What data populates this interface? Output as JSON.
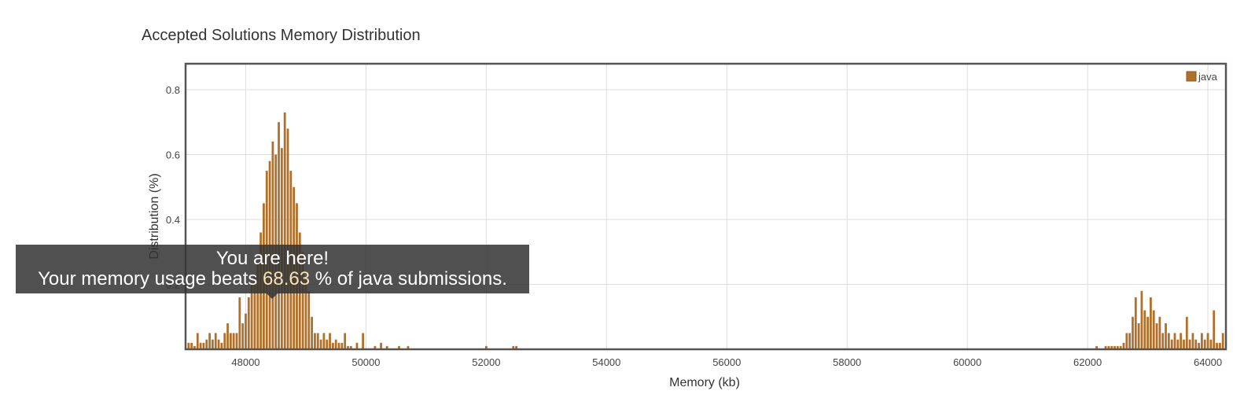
{
  "chart_data": {
    "type": "bar",
    "title": "Accepted Solutions Memory Distribution",
    "xlabel": "Memory (kb)",
    "ylabel": "Distribution (%)",
    "xlim": [
      47000,
      64300
    ],
    "ylim": [
      0,
      0.88
    ],
    "x_ticks": [
      48000,
      50000,
      52000,
      54000,
      56000,
      58000,
      60000,
      62000,
      64000
    ],
    "y_ticks": [
      0.2,
      0.4,
      0.6,
      0.8
    ],
    "grid": true,
    "legend_position": "top-right",
    "bar_width": 28,
    "series": [
      {
        "name": "java",
        "color": "#b0702a",
        "points": [
          [
            47050,
            0.02
          ],
          [
            47100,
            0.02
          ],
          [
            47150,
            0.01
          ],
          [
            47200,
            0.05
          ],
          [
            47250,
            0.02
          ],
          [
            47300,
            0.02
          ],
          [
            47350,
            0.03
          ],
          [
            47400,
            0.05
          ],
          [
            47450,
            0.03
          ],
          [
            47500,
            0.05
          ],
          [
            47550,
            0.03
          ],
          [
            47600,
            0.02
          ],
          [
            47650,
            0.05
          ],
          [
            47700,
            0.08
          ],
          [
            47750,
            0.05
          ],
          [
            47800,
            0.05
          ],
          [
            47850,
            0.05
          ],
          [
            47900,
            0.16
          ],
          [
            47950,
            0.08
          ],
          [
            48000,
            0.11
          ],
          [
            48050,
            0.16
          ],
          [
            48100,
            0.2
          ],
          [
            48150,
            0.23
          ],
          [
            48200,
            0.27
          ],
          [
            48250,
            0.36
          ],
          [
            48300,
            0.45
          ],
          [
            48350,
            0.55
          ],
          [
            48400,
            0.58
          ],
          [
            48450,
            0.64
          ],
          [
            48500,
            0.6
          ],
          [
            48550,
            0.7
          ],
          [
            48600,
            0.62
          ],
          [
            48650,
            0.73
          ],
          [
            48700,
            0.68
          ],
          [
            48750,
            0.55
          ],
          [
            48800,
            0.5
          ],
          [
            48850,
            0.45
          ],
          [
            48900,
            0.36
          ],
          [
            48950,
            0.3
          ],
          [
            49000,
            0.22
          ],
          [
            49050,
            0.18
          ],
          [
            49100,
            0.1
          ],
          [
            49150,
            0.05
          ],
          [
            49200,
            0.05
          ],
          [
            49250,
            0.03
          ],
          [
            49300,
            0.05
          ],
          [
            49350,
            0.03
          ],
          [
            49400,
            0.05
          ],
          [
            49450,
            0.02
          ],
          [
            49500,
            0.03
          ],
          [
            49550,
            0.02
          ],
          [
            49600,
            0.02
          ],
          [
            49650,
            0.05
          ],
          [
            49700,
            0.01
          ],
          [
            49750,
            0.01
          ],
          [
            49850,
            0.02
          ],
          [
            49950,
            0.05
          ],
          [
            50150,
            0.01
          ],
          [
            50250,
            0.02
          ],
          [
            50350,
            0.01
          ],
          [
            50550,
            0.01
          ],
          [
            50700,
            0.01
          ],
          [
            52000,
            0.01
          ],
          [
            52450,
            0.01
          ],
          [
            52500,
            0.01
          ],
          [
            62150,
            0.01
          ],
          [
            62300,
            0.01
          ],
          [
            62350,
            0.01
          ],
          [
            62400,
            0.01
          ],
          [
            62450,
            0.01
          ],
          [
            62500,
            0.01
          ],
          [
            62550,
            0.01
          ],
          [
            62600,
            0.02
          ],
          [
            62650,
            0.05
          ],
          [
            62700,
            0.05
          ],
          [
            62750,
            0.1
          ],
          [
            62800,
            0.16
          ],
          [
            62850,
            0.08
          ],
          [
            62900,
            0.18
          ],
          [
            62950,
            0.12
          ],
          [
            63000,
            0.1
          ],
          [
            63050,
            0.16
          ],
          [
            63100,
            0.12
          ],
          [
            63150,
            0.08
          ],
          [
            63200,
            0.1
          ],
          [
            63250,
            0.05
          ],
          [
            63300,
            0.08
          ],
          [
            63350,
            0.05
          ],
          [
            63400,
            0.03
          ],
          [
            63450,
            0.05
          ],
          [
            63500,
            0.03
          ],
          [
            63550,
            0.05
          ],
          [
            63600,
            0.03
          ],
          [
            63650,
            0.1
          ],
          [
            63700,
            0.03
          ],
          [
            63750,
            0.05
          ],
          [
            63800,
            0.03
          ],
          [
            63850,
            0.02
          ],
          [
            63900,
            0.05
          ],
          [
            63950,
            0.03
          ],
          [
            64000,
            0.05
          ],
          [
            64050,
            0.03
          ],
          [
            64100,
            0.12
          ],
          [
            64150,
            0.02
          ],
          [
            64200,
            0.02
          ],
          [
            64250,
            0.05
          ]
        ]
      }
    ]
  },
  "tooltip": {
    "line1": "You are here!",
    "line2_prefix": "Your memory usage beats ",
    "percent": "68.63",
    "line2_suffix": " % of java submissions."
  }
}
